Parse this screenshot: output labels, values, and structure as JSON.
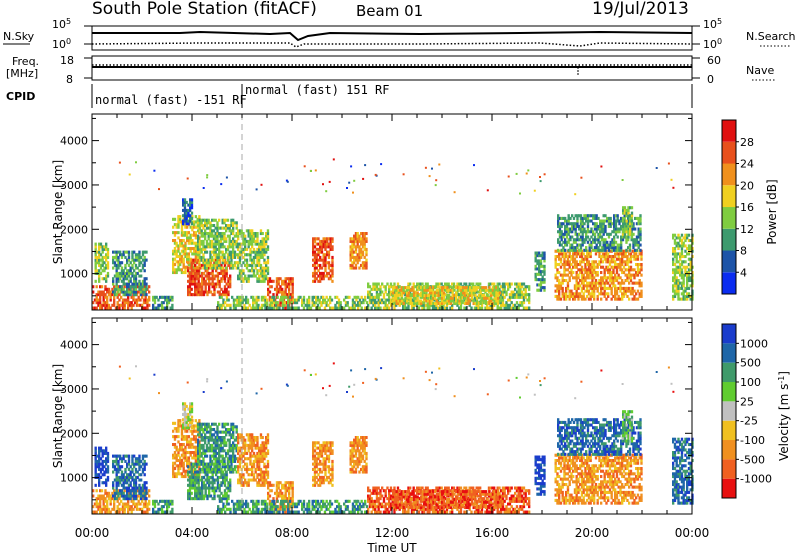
{
  "header": {
    "station": "South Pole Station (fitACF)",
    "beam": "Beam 01",
    "date": "19/Jul/2013"
  },
  "strip_labels": {
    "nsky": "N.Sky",
    "nsky_hi": "10^5",
    "nsky_lo": "10^0",
    "nsearch": "N.Search",
    "nsearch_hi": "10^5",
    "nsearch_lo": "10^0",
    "freq_line1": "Freq.",
    "freq_line2": "[MHz]",
    "freq_hi": "18",
    "freq_lo": "8",
    "nave": "Nave",
    "nave_hi": "60",
    "nave_lo": "0",
    "cpid": "CPID"
  },
  "cpid_segments": [
    {
      "label": "normal (fast) -151 RF",
      "start_hour": 0,
      "end_hour": 6
    },
    {
      "label": "normal (fast) 151 RF",
      "start_hour": 6,
      "end_hour": 24
    }
  ],
  "chart_data": [
    {
      "type": "heatmap",
      "name": "power",
      "ylabel": "Slant Range [km]",
      "xlabel": "Time UT",
      "yticks": [
        "1000",
        "2000",
        "3000",
        "4000"
      ],
      "xticks": [
        "00:00",
        "04:00",
        "08:00",
        "12:00",
        "16:00",
        "20:00",
        "00:00"
      ],
      "xlim_hours": [
        0,
        24
      ],
      "ylim_km": [
        180,
        4600
      ],
      "colorbar": {
        "label": "Power [dB]",
        "ticks": [
          "4",
          "8",
          "12",
          "16",
          "20",
          "24",
          "28"
        ],
        "colors": [
          "#0a2cf0",
          "#1d54a8",
          "#3d9a6e",
          "#7fcc40",
          "#f0d020",
          "#f0901c",
          "#e8501c",
          "#e01010"
        ]
      },
      "regions": [
        {
          "t0": 0.0,
          "t1": 2.3,
          "r0": 200,
          "r1": 700,
          "level": 6
        },
        {
          "t0": 0.1,
          "t1": 0.6,
          "r0": 800,
          "r1": 1700,
          "level": 3
        },
        {
          "t0": 0.8,
          "t1": 2.2,
          "r0": 500,
          "r1": 1500,
          "level": 2
        },
        {
          "t0": 2.4,
          "t1": 3.2,
          "r0": 200,
          "r1": 500,
          "level": 2
        },
        {
          "t0": 3.2,
          "t1": 4.3,
          "r0": 1000,
          "r1": 2300,
          "level": 4
        },
        {
          "t0": 3.6,
          "t1": 4.0,
          "r0": 2100,
          "r1": 2700,
          "level": 1
        },
        {
          "t0": 3.8,
          "t1": 5.5,
          "r0": 500,
          "r1": 1300,
          "level": 6
        },
        {
          "t0": 4.2,
          "t1": 5.8,
          "r0": 1100,
          "r1": 2200,
          "level": 3
        },
        {
          "t0": 5.8,
          "t1": 7.0,
          "r0": 800,
          "r1": 2000,
          "level": 3
        },
        {
          "t0": 7.0,
          "t1": 8.0,
          "r0": 200,
          "r1": 900,
          "level": 6
        },
        {
          "t0": 5.0,
          "t1": 11.0,
          "r0": 200,
          "r1": 500,
          "level": 3
        },
        {
          "t0": 8.8,
          "t1": 9.6,
          "r0": 800,
          "r1": 1800,
          "level": 6
        },
        {
          "t0": 10.3,
          "t1": 11.0,
          "r0": 1100,
          "r1": 1900,
          "level": 5
        },
        {
          "t0": 11.0,
          "t1": 17.5,
          "r0": 200,
          "r1": 750,
          "level": 3
        },
        {
          "t0": 12.0,
          "t1": 16.3,
          "r0": 300,
          "r1": 700,
          "level": 4
        },
        {
          "t0": 17.7,
          "t1": 18.1,
          "r0": 600,
          "r1": 1500,
          "level": 2
        },
        {
          "t0": 18.5,
          "t1": 22.0,
          "r0": 400,
          "r1": 1500,
          "level": 5
        },
        {
          "t0": 18.6,
          "t1": 21.9,
          "r0": 1500,
          "r1": 2300,
          "level": 2
        },
        {
          "t0": 21.2,
          "t1": 21.6,
          "r0": 1800,
          "r1": 2500,
          "level": 3
        },
        {
          "t0": 23.2,
          "t1": 24.0,
          "r0": 400,
          "r1": 1900,
          "level": 3
        }
      ]
    },
    {
      "type": "heatmap",
      "name": "velocity",
      "ylabel": "Slant Range [km]",
      "xlabel": "Time UT",
      "yticks": [
        "1000",
        "2000",
        "3000",
        "4000"
      ],
      "xticks": [
        "00:00",
        "04:00",
        "08:00",
        "12:00",
        "16:00",
        "20:00",
        "00:00"
      ],
      "xlim_hours": [
        0,
        24
      ],
      "ylim_km": [
        180,
        4600
      ],
      "colorbar": {
        "label": "Velocity [m s^-1]",
        "ticks": [
          "1000",
          "500",
          "100",
          "25",
          "-25",
          "-100",
          "-500",
          "-1000"
        ],
        "colors": [
          "#1a3ccc",
          "#1e66a8",
          "#3f9a6a",
          "#60cc30",
          "#c0c0c0",
          "#f0c020",
          "#f09020",
          "#f06020",
          "#e81010"
        ]
      },
      "regions": [
        {
          "t0": 0.0,
          "t1": 2.3,
          "r0": 200,
          "r1": 700,
          "level": 6
        },
        {
          "t0": 0.1,
          "t1": 0.6,
          "r0": 800,
          "r1": 1700,
          "level": 0
        },
        {
          "t0": 0.8,
          "t1": 2.2,
          "r0": 500,
          "r1": 1500,
          "level": 1
        },
        {
          "t0": 2.4,
          "t1": 3.2,
          "r0": 200,
          "r1": 500,
          "level": 2
        },
        {
          "t0": 3.2,
          "t1": 4.3,
          "r0": 1000,
          "r1": 2300,
          "level": 6
        },
        {
          "t0": 3.6,
          "t1": 4.0,
          "r0": 2100,
          "r1": 2700,
          "level": 4
        },
        {
          "t0": 3.8,
          "t1": 5.5,
          "r0": 500,
          "r1": 1300,
          "level": 2
        },
        {
          "t0": 4.2,
          "t1": 5.8,
          "r0": 1100,
          "r1": 2200,
          "level": 2
        },
        {
          "t0": 5.8,
          "t1": 7.0,
          "r0": 800,
          "r1": 2000,
          "level": 6
        },
        {
          "t0": 7.0,
          "t1": 8.0,
          "r0": 200,
          "r1": 900,
          "level": 6
        },
        {
          "t0": 5.0,
          "t1": 11.0,
          "r0": 200,
          "r1": 500,
          "level": 2
        },
        {
          "t0": 8.8,
          "t1": 9.6,
          "r0": 800,
          "r1": 1800,
          "level": 6
        },
        {
          "t0": 10.3,
          "t1": 11.0,
          "r0": 1100,
          "r1": 1900,
          "level": 6
        },
        {
          "t0": 11.0,
          "t1": 17.5,
          "r0": 200,
          "r1": 750,
          "level": 7
        },
        {
          "t0": 12.0,
          "t1": 16.3,
          "r0": 300,
          "r1": 700,
          "level": 7
        },
        {
          "t0": 17.7,
          "t1": 18.1,
          "r0": 600,
          "r1": 1500,
          "level": 0
        },
        {
          "t0": 18.5,
          "t1": 22.0,
          "r0": 400,
          "r1": 1500,
          "level": 6
        },
        {
          "t0": 18.6,
          "t1": 21.9,
          "r0": 1500,
          "r1": 2300,
          "level": 1
        },
        {
          "t0": 21.2,
          "t1": 21.6,
          "r0": 1800,
          "r1": 2500,
          "level": 3
        },
        {
          "t0": 23.2,
          "t1": 24.0,
          "r0": 400,
          "r1": 1900,
          "level": 1
        }
      ]
    }
  ]
}
